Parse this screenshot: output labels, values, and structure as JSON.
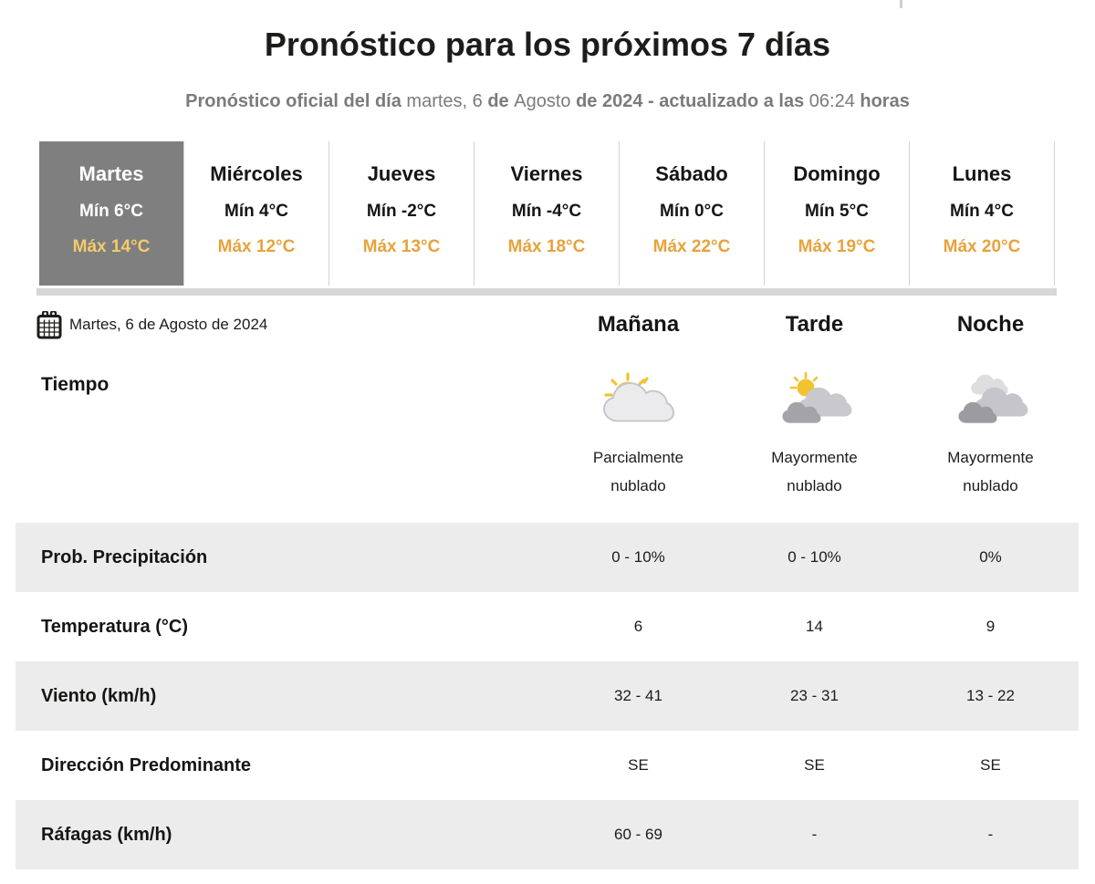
{
  "page": {
    "title": "Pronóstico para los próximos 7 días",
    "subtitle_parts": [
      {
        "text": "Pronóstico oficial del día ",
        "bold": true
      },
      {
        "text": "martes, 6 ",
        "bold": false
      },
      {
        "text": "de ",
        "bold": true
      },
      {
        "text": "Agosto ",
        "bold": false
      },
      {
        "text": "de 2024 - actualizado a las ",
        "bold": true
      },
      {
        "text": "06:24 ",
        "bold": false
      },
      {
        "text": "horas",
        "bold": true
      }
    ]
  },
  "day_tabs": [
    {
      "day": "Martes",
      "min": "Mín 6°C",
      "max": "Máx 14°C",
      "selected": true
    },
    {
      "day": "Miércoles",
      "min": "Mín 4°C",
      "max": "Máx 12°C",
      "selected": false
    },
    {
      "day": "Jueves",
      "min": "Mín -2°C",
      "max": "Máx 13°C",
      "selected": false
    },
    {
      "day": "Viernes",
      "min": "Mín -4°C",
      "max": "Máx 18°C",
      "selected": false
    },
    {
      "day": "Sábado",
      "min": "Mín 0°C",
      "max": "Máx 22°C",
      "selected": false
    },
    {
      "day": "Domingo",
      "min": "Mín 5°C",
      "max": "Máx 19°C",
      "selected": false
    },
    {
      "day": "Lunes",
      "min": "Mín 4°C",
      "max": "Máx 20°C",
      "selected": false
    }
  ],
  "detail": {
    "date_label": "Martes, 6 de Agosto de 2024",
    "period_headers": [
      "Mañana",
      "Tarde",
      "Noche"
    ],
    "weather_row_label": "Tiempo",
    "conditions": [
      {
        "icon": "sun-behind-cloud-icon",
        "label": "Parcialmente nublado"
      },
      {
        "icon": "sun-behind-clouds-icon",
        "label": "Mayormente nublado"
      },
      {
        "icon": "cloudy-night-icon",
        "label": "Mayormente nublado"
      }
    ],
    "rows": [
      {
        "label": "Prob. Precipitación",
        "values": [
          "0 - 10%",
          "0 - 10%",
          "0%"
        ],
        "shaded": true
      },
      {
        "label": "Temperatura (°C)",
        "values": [
          "6",
          "14",
          "9"
        ],
        "shaded": false
      },
      {
        "label": "Viento (km/h)",
        "values": [
          "32 - 41",
          "23 - 31",
          "13 - 22"
        ],
        "shaded": true
      },
      {
        "label": "Dirección Predominante",
        "values": [
          "SE",
          "SE",
          "SE"
        ],
        "shaded": false
      },
      {
        "label": "Ráfagas (km/h)",
        "values": [
          "60 - 69",
          "-",
          "-"
        ],
        "shaded": true
      }
    ]
  },
  "colors": {
    "max_temp_accent": "#e8a23b",
    "max_temp_on_selected": "#f4ca6d",
    "selected_tab_bg": "#7f7f7f",
    "shaded_row_bg": "#ececec",
    "subtitle_gray": "#7b7b7b"
  }
}
